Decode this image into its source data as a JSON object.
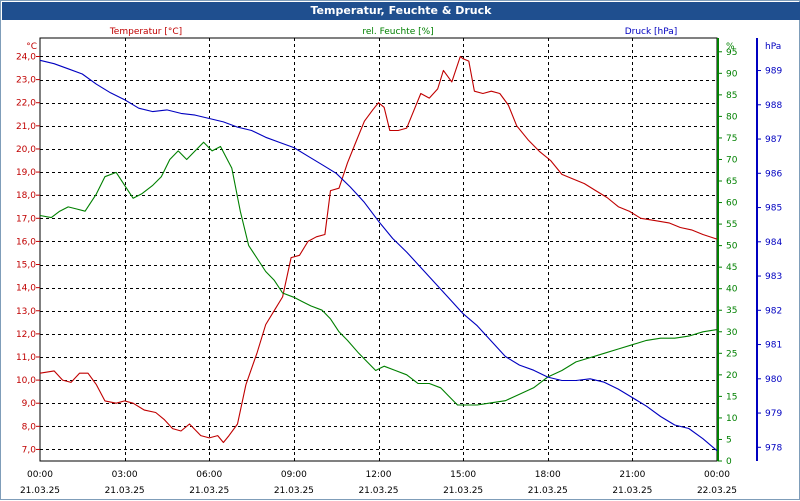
{
  "window": {
    "title": "Temperatur, Feuchte & Druck"
  },
  "chart_data": {
    "type": "line",
    "title": "Temperatur, Feuchte & Druck",
    "grid": true,
    "x_ticks": [
      {
        "time": "00:00",
        "date": "21.03.25",
        "h": 0
      },
      {
        "time": "03:00",
        "date": "21.03.25",
        "h": 3
      },
      {
        "time": "06:00",
        "date": "21.03.25",
        "h": 6
      },
      {
        "time": "09:00",
        "date": "21.03.25",
        "h": 9
      },
      {
        "time": "12:00",
        "date": "21.03.25",
        "h": 12
      },
      {
        "time": "15:00",
        "date": "21.03.25",
        "h": 15
      },
      {
        "time": "18:00",
        "date": "21.03.25",
        "h": 18
      },
      {
        "time": "21:00",
        "date": "21.03.25",
        "h": 21
      },
      {
        "time": "00:00",
        "date": "22.03.25",
        "h": 24
      }
    ],
    "xlim": [
      0,
      24
    ],
    "axes": {
      "temperature": {
        "unit": "°C",
        "color": "#c00000",
        "range": [
          6.5,
          24.8
        ],
        "ticks": [
          7.0,
          8.0,
          9.0,
          10.0,
          11.0,
          12.0,
          13.0,
          14.0,
          15.0,
          16.0,
          17.0,
          18.0,
          19.0,
          20.0,
          21.0,
          22.0,
          23.0,
          24.0
        ],
        "tick_labels": [
          "7,0",
          "8,0",
          "9,0",
          "10,0",
          "11,0",
          "12,0",
          "13,0",
          "14,0",
          "15,0",
          "16,0",
          "17,0",
          "18,0",
          "19,0",
          "20,0",
          "21,0",
          "22,0",
          "23,0",
          "24,0"
        ]
      },
      "humidity": {
        "unit": "%",
        "color": "#008000",
        "range": [
          0,
          98.2
        ],
        "ticks": [
          0,
          5,
          10,
          15,
          20,
          25,
          30,
          35,
          40,
          45,
          50,
          55,
          60,
          65,
          70,
          75,
          80,
          85,
          90,
          95
        ],
        "tick_labels": [
          "0",
          "5",
          "10",
          "15",
          "20",
          "25",
          "30",
          "35",
          "40",
          "45",
          "50",
          "55",
          "60",
          "65",
          "70",
          "75",
          "80",
          "85",
          "90",
          "95"
        ]
      },
      "pressure": {
        "unit": "hPa",
        "color": "#0000c0",
        "range": [
          977.6,
          989.95
        ],
        "ticks": [
          978,
          979,
          980,
          981,
          982,
          983,
          984,
          985,
          986,
          987,
          988,
          989
        ],
        "tick_labels": [
          "978",
          "979",
          "980",
          "981",
          "982",
          "983",
          "984",
          "985",
          "986",
          "987",
          "988",
          "989"
        ]
      }
    },
    "series": [
      {
        "name": "Temperatur [°C]",
        "axis": "temperature",
        "color": "#c00000",
        "points": [
          [
            0,
            10.3
          ],
          [
            0.5,
            10.4
          ],
          [
            0.8,
            10.0
          ],
          [
            1.1,
            9.9
          ],
          [
            1.4,
            10.3
          ],
          [
            1.7,
            10.3
          ],
          [
            2.0,
            9.8
          ],
          [
            2.3,
            9.1
          ],
          [
            2.7,
            9.0
          ],
          [
            3.0,
            9.1
          ],
          [
            3.3,
            9.0
          ],
          [
            3.7,
            8.7
          ],
          [
            4.1,
            8.6
          ],
          [
            4.4,
            8.3
          ],
          [
            4.7,
            7.9
          ],
          [
            5.0,
            7.8
          ],
          [
            5.3,
            8.1
          ],
          [
            5.7,
            7.6
          ],
          [
            6.0,
            7.5
          ],
          [
            6.3,
            7.6
          ],
          [
            6.5,
            7.3
          ],
          [
            6.7,
            7.6
          ],
          [
            7.0,
            8.1
          ],
          [
            7.3,
            9.8
          ],
          [
            7.7,
            11.2
          ],
          [
            8.0,
            12.4
          ],
          [
            8.3,
            13.0
          ],
          [
            8.6,
            13.6
          ],
          [
            8.9,
            15.3
          ],
          [
            9.2,
            15.4
          ],
          [
            9.5,
            16.0
          ],
          [
            9.8,
            16.2
          ],
          [
            10.1,
            16.3
          ],
          [
            10.3,
            18.2
          ],
          [
            10.6,
            18.3
          ],
          [
            10.9,
            19.4
          ],
          [
            11.2,
            20.3
          ],
          [
            11.5,
            21.2
          ],
          [
            11.8,
            21.7
          ],
          [
            12.0,
            22.0
          ],
          [
            12.2,
            21.8
          ],
          [
            12.4,
            20.8
          ],
          [
            12.7,
            20.8
          ],
          [
            13.0,
            20.9
          ],
          [
            13.2,
            21.5
          ],
          [
            13.5,
            22.4
          ],
          [
            13.8,
            22.2
          ],
          [
            14.1,
            22.6
          ],
          [
            14.3,
            23.4
          ],
          [
            14.6,
            22.9
          ],
          [
            14.9,
            24.0
          ],
          [
            15.0,
            23.9
          ],
          [
            15.2,
            23.8
          ],
          [
            15.4,
            22.5
          ],
          [
            15.7,
            22.4
          ],
          [
            16.0,
            22.5
          ],
          [
            16.3,
            22.4
          ],
          [
            16.6,
            21.9
          ],
          [
            16.9,
            21.0
          ],
          [
            17.3,
            20.4
          ],
          [
            17.7,
            19.9
          ],
          [
            18.1,
            19.5
          ],
          [
            18.5,
            18.9
          ],
          [
            18.9,
            18.7
          ],
          [
            19.3,
            18.5
          ],
          [
            19.7,
            18.2
          ],
          [
            20.1,
            17.9
          ],
          [
            20.5,
            17.5
          ],
          [
            20.9,
            17.3
          ],
          [
            21.3,
            17.0
          ],
          [
            21.8,
            16.9
          ],
          [
            22.3,
            16.8
          ],
          [
            22.7,
            16.6
          ],
          [
            23.1,
            16.5
          ],
          [
            23.5,
            16.3
          ],
          [
            24.0,
            16.1
          ]
        ]
      },
      {
        "name": "rel. Feuchte [%]",
        "axis": "humidity",
        "color": "#008000",
        "points": [
          [
            0,
            57
          ],
          [
            0.4,
            56.5
          ],
          [
            0.7,
            58
          ],
          [
            1.0,
            59
          ],
          [
            1.3,
            58.5
          ],
          [
            1.6,
            58
          ],
          [
            2.0,
            62
          ],
          [
            2.3,
            66
          ],
          [
            2.7,
            67
          ],
          [
            3.0,
            64
          ],
          [
            3.3,
            61
          ],
          [
            3.6,
            62
          ],
          [
            4.0,
            64
          ],
          [
            4.3,
            66
          ],
          [
            4.6,
            70
          ],
          [
            4.9,
            72
          ],
          [
            5.2,
            70
          ],
          [
            5.5,
            72
          ],
          [
            5.8,
            74
          ],
          [
            6.1,
            72
          ],
          [
            6.4,
            73
          ],
          [
            6.8,
            68
          ],
          [
            7.1,
            58
          ],
          [
            7.4,
            50
          ],
          [
            7.7,
            47
          ],
          [
            8.0,
            44
          ],
          [
            8.3,
            42
          ],
          [
            8.6,
            39
          ],
          [
            9.0,
            38
          ],
          [
            9.3,
            37
          ],
          [
            9.6,
            36
          ],
          [
            10.0,
            35
          ],
          [
            10.3,
            33
          ],
          [
            10.6,
            30
          ],
          [
            10.9,
            28
          ],
          [
            11.3,
            25
          ],
          [
            11.6,
            23
          ],
          [
            11.9,
            21
          ],
          [
            12.2,
            22
          ],
          [
            12.6,
            21
          ],
          [
            13.0,
            20
          ],
          [
            13.4,
            18
          ],
          [
            13.8,
            18
          ],
          [
            14.2,
            17
          ],
          [
            14.5,
            15
          ],
          [
            14.8,
            13
          ],
          [
            15.0,
            13
          ],
          [
            15.5,
            13
          ],
          [
            16.0,
            13.5
          ],
          [
            16.5,
            14
          ],
          [
            17.0,
            15.5
          ],
          [
            17.5,
            17
          ],
          [
            18.0,
            19.5
          ],
          [
            18.5,
            21
          ],
          [
            19.0,
            23
          ],
          [
            19.5,
            24
          ],
          [
            20.0,
            25
          ],
          [
            20.5,
            26
          ],
          [
            21.0,
            27
          ],
          [
            21.5,
            28
          ],
          [
            22.0,
            28.5
          ],
          [
            22.5,
            28.5
          ],
          [
            23.0,
            29
          ],
          [
            23.5,
            30
          ],
          [
            24.0,
            30.5
          ]
        ]
      },
      {
        "name": "Druck [hPa]",
        "axis": "pressure",
        "color": "#0000c0",
        "points": [
          [
            0,
            989.3
          ],
          [
            0.5,
            989.2
          ],
          [
            1.0,
            989.05
          ],
          [
            1.5,
            988.9
          ],
          [
            2.0,
            988.6
          ],
          [
            2.5,
            988.35
          ],
          [
            3.0,
            988.15
          ],
          [
            3.5,
            987.9
          ],
          [
            4.0,
            987.8
          ],
          [
            4.5,
            987.85
          ],
          [
            5.0,
            987.75
          ],
          [
            5.5,
            987.7
          ],
          [
            6.0,
            987.6
          ],
          [
            6.5,
            987.5
          ],
          [
            7.0,
            987.35
          ],
          [
            7.5,
            987.25
          ],
          [
            8.0,
            987.05
          ],
          [
            8.5,
            986.9
          ],
          [
            9.0,
            986.75
          ],
          [
            9.5,
            986.5
          ],
          [
            10.0,
            986.25
          ],
          [
            10.5,
            986.0
          ],
          [
            11.0,
            985.6
          ],
          [
            11.5,
            985.15
          ],
          [
            12.0,
            984.6
          ],
          [
            12.5,
            984.1
          ],
          [
            13.0,
            983.7
          ],
          [
            13.5,
            983.25
          ],
          [
            14.0,
            982.8
          ],
          [
            14.5,
            982.35
          ],
          [
            15.0,
            981.9
          ],
          [
            15.5,
            981.55
          ],
          [
            16.0,
            981.1
          ],
          [
            16.5,
            980.65
          ],
          [
            17.0,
            980.4
          ],
          [
            17.5,
            980.25
          ],
          [
            18.0,
            980.05
          ],
          [
            18.5,
            979.95
          ],
          [
            19.0,
            979.95
          ],
          [
            19.5,
            980.0
          ],
          [
            20.0,
            979.9
          ],
          [
            20.5,
            979.7
          ],
          [
            21.0,
            979.45
          ],
          [
            21.5,
            979.2
          ],
          [
            22.0,
            978.9
          ],
          [
            22.5,
            978.65
          ],
          [
            23.0,
            978.55
          ],
          [
            23.5,
            978.25
          ],
          [
            24.0,
            977.9
          ]
        ]
      }
    ]
  }
}
